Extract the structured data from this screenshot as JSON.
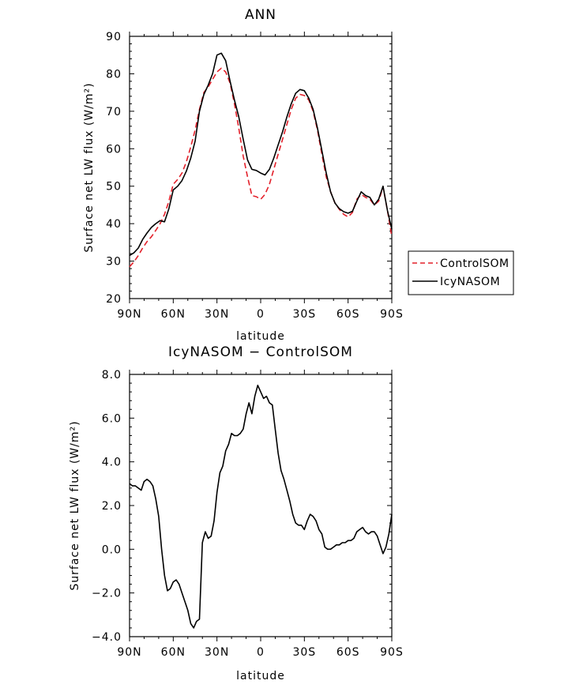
{
  "chart_data": [
    {
      "type": "line",
      "title": "ANN",
      "xlabel": "latitude",
      "ylabel": "Surface net LW flux (W/m²)",
      "ylim": [
        20,
        90
      ],
      "yticks": [
        "20",
        "30",
        "40",
        "50",
        "60",
        "70",
        "80",
        "90"
      ],
      "xlim": [
        90,
        -90
      ],
      "xticks": [
        {
          "value": 90,
          "label": "90N"
        },
        {
          "value": 60,
          "label": "60N"
        },
        {
          "value": 30,
          "label": "30N"
        },
        {
          "value": 0,
          "label": "0"
        },
        {
          "value": -30,
          "label": "30S"
        },
        {
          "value": -60,
          "label": "60S"
        },
        {
          "value": -90,
          "label": "90S"
        }
      ],
      "grid": false,
      "legend_placement": "right",
      "series": [
        {
          "name": "ControlSOM",
          "color": "#e3202a",
          "dash": "dashed",
          "x": [
            90,
            87,
            84,
            81,
            78,
            75,
            72,
            69,
            66,
            63,
            60,
            57,
            54,
            51,
            48,
            45,
            42,
            39,
            36,
            33,
            30,
            27,
            24,
            21,
            18,
            15,
            12,
            9,
            6,
            3,
            0,
            -3,
            -6,
            -9,
            -12,
            -15,
            -18,
            -21,
            -24,
            -27,
            -30,
            -33,
            -36,
            -39,
            -42,
            -45,
            -48,
            -51,
            -54,
            -57,
            -60,
            -63,
            -66,
            -69,
            -72,
            -75,
            -78,
            -81,
            -84,
            -87,
            -90
          ],
          "y": [
            28.5,
            29.8,
            31.5,
            33.5,
            35.2,
            36.5,
            38.2,
            40.0,
            42.5,
            46.0,
            50.5,
            51.8,
            53.5,
            56.5,
            60.5,
            65.0,
            70.5,
            75.0,
            76.5,
            78.5,
            80.5,
            81.5,
            80.5,
            77.5,
            72.0,
            65.5,
            58.0,
            52.5,
            47.5,
            47.2,
            46.5,
            47.8,
            50.5,
            54.5,
            58.5,
            62.5,
            66.5,
            70.5,
            73.5,
            74.5,
            74.2,
            73.0,
            70.0,
            65.0,
            58.5,
            52.5,
            48.5,
            45.5,
            43.8,
            42.5,
            41.8,
            43.0,
            46.5,
            47.8,
            47.0,
            46.5,
            45.0,
            46.0,
            49.8,
            43.5,
            36.5
          ]
        },
        {
          "name": "IcyNASOM",
          "color": "#000000",
          "dash": "solid",
          "x": [
            90,
            87,
            84,
            81,
            78,
            75,
            72,
            69,
            66,
            63,
            60,
            57,
            54,
            51,
            48,
            45,
            42,
            39,
            36,
            33,
            30,
            27,
            24,
            21,
            18,
            15,
            12,
            9,
            6,
            3,
            0,
            -3,
            -6,
            -9,
            -12,
            -15,
            -18,
            -21,
            -24,
            -27,
            -30,
            -33,
            -36,
            -39,
            -42,
            -45,
            -48,
            -51,
            -54,
            -57,
            -60,
            -63,
            -66,
            -69,
            -72,
            -75,
            -78,
            -81,
            -84,
            -87,
            -90
          ],
          "y": [
            31.5,
            32.2,
            33.5,
            35.8,
            37.5,
            39.0,
            40.0,
            40.8,
            40.5,
            44.0,
            49.0,
            50.0,
            51.5,
            54.0,
            57.5,
            62.0,
            70.0,
            74.5,
            77.0,
            80.0,
            85.0,
            85.5,
            83.5,
            78.0,
            73.0,
            68.5,
            62.5,
            57.0,
            54.5,
            54.2,
            53.5,
            53.0,
            54.5,
            57.5,
            61.0,
            64.5,
            68.5,
            72.0,
            74.8,
            75.8,
            75.5,
            73.5,
            70.5,
            65.5,
            59.5,
            53.5,
            48.5,
            45.5,
            44.0,
            43.2,
            42.8,
            43.3,
            46.0,
            48.5,
            47.5,
            47.0,
            45.0,
            46.5,
            50.0,
            43.5,
            38.5
          ]
        }
      ]
    },
    {
      "type": "line",
      "title": "IcyNASOM − ControlSOM",
      "xlabel": "latitude",
      "ylabel": "Surface net LW flux (W/m²)",
      "ylim": [
        -4.0,
        8.0
      ],
      "yticks": [
        "−4.0",
        "−2.0",
        "0.0",
        "2.0",
        "4.0",
        "6.0",
        "8.0"
      ],
      "xlim": [
        90,
        -90
      ],
      "xticks": [
        {
          "value": 90,
          "label": "90N"
        },
        {
          "value": 60,
          "label": "60N"
        },
        {
          "value": 30,
          "label": "30N"
        },
        {
          "value": 0,
          "label": "0"
        },
        {
          "value": -30,
          "label": "30S"
        },
        {
          "value": -60,
          "label": "60S"
        },
        {
          "value": -90,
          "label": "90S"
        }
      ],
      "grid": false,
      "series": [
        {
          "color": "#000000",
          "x": [
            90,
            88,
            86,
            84,
            82,
            80,
            78,
            76,
            74,
            72,
            70,
            68,
            66,
            64,
            62,
            60,
            58,
            56,
            54,
            52,
            50,
            48,
            46,
            44,
            42,
            40,
            38,
            36,
            34,
            32,
            30,
            28,
            26,
            24,
            22,
            20,
            18,
            16,
            14,
            12,
            10,
            8,
            6,
            4,
            2,
            0,
            -2,
            -4,
            -6,
            -8,
            -10,
            -12,
            -14,
            -16,
            -18,
            -20,
            -22,
            -24,
            -26,
            -28,
            -30,
            -32,
            -34,
            -36,
            -38,
            -40,
            -42,
            -44,
            -46,
            -48,
            -50,
            -52,
            -54,
            -56,
            -58,
            -60,
            -62,
            -64,
            -66,
            -68,
            -70,
            -72,
            -74,
            -76,
            -78,
            -80,
            -82,
            -84,
            -86,
            -88,
            -90
          ],
          "y": [
            3.0,
            2.9,
            2.9,
            2.8,
            2.7,
            3.1,
            3.2,
            3.1,
            2.9,
            2.3,
            1.5,
            0.0,
            -1.2,
            -1.9,
            -1.8,
            -1.5,
            -1.4,
            -1.6,
            -2.0,
            -2.4,
            -2.8,
            -3.4,
            -3.6,
            -3.3,
            -3.2,
            0.3,
            0.8,
            0.5,
            0.6,
            1.3,
            2.6,
            3.5,
            3.8,
            4.5,
            4.8,
            5.3,
            5.2,
            5.2,
            5.3,
            5.5,
            6.2,
            6.7,
            6.2,
            7.0,
            7.5,
            7.2,
            6.9,
            7.0,
            6.7,
            6.6,
            5.5,
            4.4,
            3.6,
            3.2,
            2.7,
            2.2,
            1.6,
            1.2,
            1.1,
            1.1,
            0.9,
            1.3,
            1.6,
            1.5,
            1.3,
            0.9,
            0.7,
            0.1,
            0.0,
            0.0,
            0.1,
            0.2,
            0.2,
            0.3,
            0.3,
            0.4,
            0.4,
            0.5,
            0.8,
            0.9,
            1.0,
            0.8,
            0.7,
            0.8,
            0.8,
            0.6,
            0.2,
            -0.2,
            0.1,
            0.7,
            1.6
          ]
        }
      ]
    }
  ]
}
